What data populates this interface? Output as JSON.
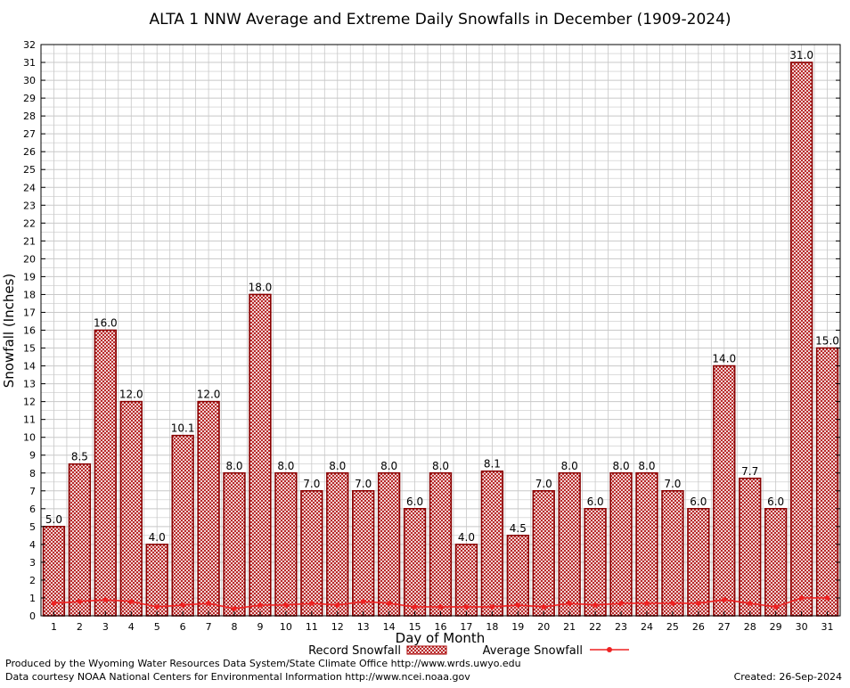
{
  "chart_data": {
    "type": "bar",
    "title": "ALTA 1 NNW Average and Extreme Daily Snowfalls in December (1909-2024)",
    "xlabel": "Day of Month",
    "ylabel": "Snowfall (Inches)",
    "ylim": [
      0,
      32
    ],
    "yticks": [
      0,
      1,
      2,
      3,
      4,
      5,
      6,
      7,
      8,
      9,
      10,
      11,
      12,
      13,
      14,
      15,
      16,
      17,
      18,
      19,
      20,
      21,
      22,
      23,
      24,
      25,
      26,
      27,
      28,
      29,
      30,
      31,
      32
    ],
    "categories": [
      1,
      2,
      3,
      4,
      5,
      6,
      7,
      8,
      9,
      10,
      11,
      12,
      13,
      14,
      15,
      16,
      17,
      18,
      19,
      20,
      21,
      22,
      23,
      24,
      25,
      26,
      27,
      28,
      29,
      30,
      31
    ],
    "grid": true,
    "legend_position": "bottom",
    "series": [
      {
        "name": "Record Snowfall",
        "kind": "bar",
        "color": "#aa0000",
        "values": [
          5.0,
          8.5,
          16.0,
          12.0,
          4.0,
          10.1,
          12.0,
          8.0,
          18.0,
          8.0,
          7.0,
          8.0,
          7.0,
          8.0,
          6.0,
          8.0,
          4.0,
          8.1,
          4.5,
          7.0,
          8.0,
          6.0,
          8.0,
          8.0,
          7.0,
          6.0,
          14.0,
          7.7,
          6.0,
          31.0,
          15.0
        ],
        "labels": [
          "5.0",
          "8.5",
          "16.0",
          "12.0",
          "4.0",
          "10.1",
          "12.0",
          "8.0",
          "18.0",
          "8.0",
          "7.0",
          "8.0",
          "7.0",
          "8.0",
          "6.0",
          "8.0",
          "4.0",
          "8.1",
          "4.5",
          "7.0",
          "8.0",
          "6.0",
          "8.0",
          "8.0",
          "7.0",
          "6.0",
          "14.0",
          "7.7",
          "6.0",
          "31.0",
          "15.0"
        ]
      },
      {
        "name": "Average Snowfall",
        "kind": "line",
        "color": "#ee2222",
        "values": [
          0.7,
          0.8,
          0.9,
          0.8,
          0.5,
          0.6,
          0.7,
          0.4,
          0.6,
          0.6,
          0.7,
          0.6,
          0.8,
          0.7,
          0.5,
          0.5,
          0.5,
          0.5,
          0.6,
          0.5,
          0.7,
          0.6,
          0.7,
          0.7,
          0.7,
          0.7,
          0.9,
          0.7,
          0.5,
          1.0,
          1.0
        ]
      }
    ]
  },
  "footer": {
    "line1": "Produced by the Wyoming Water Resources Data System/State Climate Office http://www.wrds.uwyo.edu",
    "line2": "Data courtesy NOAA National Centers for Environmental Information http://www.ncei.noaa.gov",
    "created": "Created:  26-Sep-2024"
  }
}
